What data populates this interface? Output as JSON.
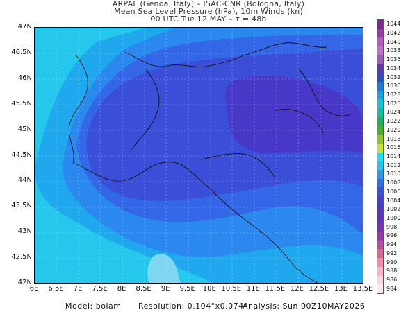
{
  "header": {
    "line1": "ARPAL (Genoa, Italy)  –  ISAC-CNR (Bologna, Italy)",
    "line2": "Mean Sea Level Pressure (hPa), 10m Winds (kn)",
    "line3": "00 UTC Tue 12 MAY  –  τ = 48h"
  },
  "map": {
    "lat_labels": [
      "47N",
      "46.5N",
      "46N",
      "45.5N",
      "45N",
      "44.5N",
      "44N",
      "43.5N",
      "43N",
      "42.5N",
      "42N"
    ],
    "lon_labels": [
      "6E",
      "6.5E",
      "7E",
      "7.5E",
      "8E",
      "8.5E",
      "9E",
      "9.5E",
      "10E",
      "10.5E",
      "11E",
      "11.5E",
      "12E",
      "12.5E",
      "13E",
      "13.5E"
    ]
  },
  "colorbar": {
    "labels": [
      "1044",
      "1042",
      "1040",
      "1038",
      "1036",
      "1034",
      "1032",
      "1030",
      "1028",
      "1026",
      "1024",
      "1022",
      "1020",
      "1018",
      "1016",
      "1014",
      "1012",
      "1010",
      "1008",
      "1006",
      "1004",
      "1002",
      "1000",
      "998",
      "996",
      "994",
      "992",
      "990",
      "988",
      "986",
      "984"
    ],
    "colors": [
      "#7a2a8f",
      "#8a3aa0",
      "#9e4db3",
      "#a65cb8",
      "#8a4ea8",
      "#6b3c9e",
      "#3a4fb8",
      "#2f6cd0",
      "#2b88d8",
      "#22a0d8",
      "#1fb0c0",
      "#23b58a",
      "#39b24a",
      "#6cc23a",
      "#9fd23a",
      "#2ad0e0",
      "#1ab8e8",
      "#2a8ef0",
      "#3464e8",
      "#3c48d8",
      "#4a3ad0",
      "#5a34c8",
      "#6a34b8",
      "#7a3aa8",
      "#9a4aa8",
      "#c05a98",
      "#d87090",
      "#e894a8",
      "#f0b8c8",
      "#f8d8e0",
      "#fde8ef"
    ],
    "legend_colors": [
      "#7a2a8f",
      "#9a3aa6",
      "#b45ac0",
      "#c070c8",
      "#a05ab8",
      "#5a3ab0",
      "#2a4cc0",
      "#1a7cd8",
      "#10a8e0",
      "#10c8d8",
      "#10c0a0",
      "#20b060",
      "#48b030",
      "#8cc828",
      "#c8e030",
      "#18e0f0",
      "#20c8f0",
      "#2a98ee",
      "#3070e6",
      "#3a50dc",
      "#4440d0",
      "#5236c4",
      "#6432b8",
      "#7a34b0",
      "#9a3aa8",
      "#c04a9c",
      "#e06498",
      "#f08cb0",
      "#f8b4cc",
      "#fcd6e2",
      "#fde6ee"
    ]
  },
  "footer": {
    "model": "Model: bolam",
    "resolution": "Resolution: 0.104°x0.074°",
    "analysis": "Analysis: Sun 00Z10MAY2026"
  }
}
